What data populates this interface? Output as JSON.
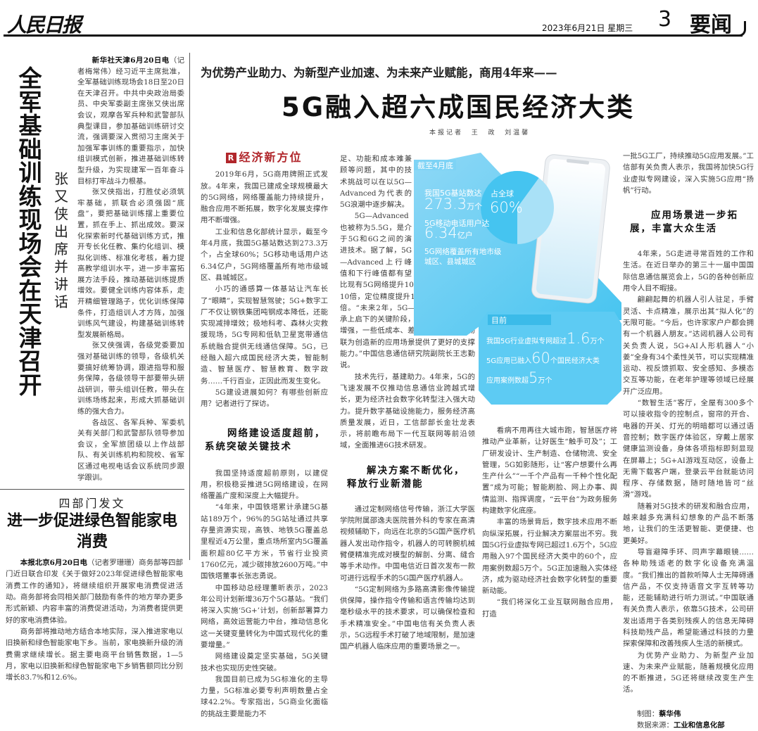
{
  "masthead": {
    "logo": "人民日报",
    "date": "2023年6月21日  星期三",
    "page_number": "3",
    "page_name": "要闻"
  },
  "left_story": {
    "headline": "全军基础训练现场会在天津召开",
    "subtitle": "张又侠出席并讲话",
    "dateline": "新华社天津6月20日电",
    "paragraphs": [
      "（记者梅常伟）经习近平主席批准，全军基础训练现场会18日至20日在天津召开。中共中央政治局委员、中央军委副主席张又侠出席会议，观摩各军兵种和武警部队典型课目，参加基础训练研讨交流，强调要深入贯彻习主席关于加强军事训练的重要指示，加快组训模式创新，推进基础训练转型升级，为实现建军一百年奋斗目标打牢战斗力根基。",
      "张又侠指出，打胜仗必须筑牢基础，抓联合必须强固“底盘”，要把基础训练摆上重要位置，抓在手上、抓出成效。要深化探索新时代基础训练方式，推开专长化任教、集约化组训、模拟化训练、标准化考核，着力提高教学组训水平，进一步丰富拓展方法手段，推动基础训练提质增效。要健全训练内容体系，走开精细管理路子，优化训练保障条件，打造组训人才方阵，加强训练风气建设，构建基础训练转型发展新格局。",
      "张又侠强调，各级党委要加强对基础训练的领导，各级机关要搞好统筹协调，跟进指导和服务保障，各级领导干部要带头研战研训，带头组训任教，带头在训练场练起来，形成大抓基础训练的强大合力。",
      "各战区、各军兵种、军委机关有关部门和武警部队领导参加会议，全军旅团级以上作战部队、有关训练机构和院校、省军区通过电视电话会议系统同步跟学跟训。"
    ]
  },
  "bottom_story": {
    "kicker": "四部门发文",
    "headline": "进一步促进绿色智能家电消费",
    "dateline": "本报北京6月20日电",
    "paragraphs": [
      "（记者罗珊珊）商务部等四部门近日联合印发《关于做好2023年促进绿色智能家电消费工作的通知》，将继续组织开展家电消费促进活动。商务部将会同相关部门鼓励有条件的地方举办更多形式新颖、内容丰富的消费促进活动，为消费者提供更好的家电消费体验。",
      "商务部将推动地方结合本地实际，深入推进家电以旧换新和绿色智能家电下乡。当前，家电换新升级的消费需求继续增长。据主要电商平台销售数据，1—5月，家电以旧换新和绿色智能家电下乡销售额同比分别增长83.7%和12.6%。"
    ]
  },
  "main_story": {
    "kicker": "为优势产业助力、为新型产业加速、为未来产业赋能，商用4年来——",
    "headline": "5G融入超六成国民经济大类",
    "byline": "本报记者  王  政  刘温馨",
    "section_label": "经济新方位",
    "section_icon": "R",
    "col1": [
      "2019年6月，5G商用牌照正式发放。4年来，我国已建成全球规模最大的5G网络，网络覆盖能力持续提升，融合应用不断拓展，数字化发展支撑作用不断增强。",
      "工业和信息化部统计显示，截至今年4月底，我国5G基站数达到273.3万个，占全球60%；5G移动电话用户达6.34亿户，5G网络覆盖所有地市级城区、县城城区。",
      "小巧的通感算一体基站让汽车长了“眼睛”，实现智慧驾驶；5G+数字工厂不仅让钢铁集团吨钢成本降低，还能实现减排增效；极地科考、森林火灾救援现场，5G专网和低轨卫星宽带通信系统融合提供无线通信保障。5G，已经融入超六成国民经济大类，智能制造、智慧医疗、智慧教育、数字政务……千行百业，正因此而发生变化。",
      "5G建设进展如何？有哪些创新应用？记者进行了探访。"
    ],
    "subhead1": [
      "网络建设适度超前，",
      "系统突破关键技术"
    ],
    "col1b": [
      "我国坚持适度超前原则，以建促用，积极稳妥推进5G网络建设，在网络覆盖广度和深度上大幅提升。",
      "“4年来，中国铁塔累计承建5G基站189万个，96%的5G站址通过共享存量资源实现，高铁、地铁5G覆盖总里程近4万公里，重点场所室内5G覆盖面积超80亿平方米，节省行业投资1760亿元，减少碳排放2600万吨。”中国铁塔董事长张志勇说。",
      "中国移动总经理董昕表示，2023年公司计划新增36万个5G基站。“我们将深入实施‘5G+’计划，创新部署算力网络，高效运营能力中台，推动信息化这一关键变量转化为中国式现代化的重要增量。”",
      "网络建设奠定坚实基础，5G关键技术也实现历史性突破。",
      "我国目前已成为5G标准化的主导力量，5G标准必要专利声明数量占全球42.2%。专家指出，5G商业化面临的挑战主要是能力不"
    ],
    "col2": [
      "足、功能和成本难兼顾等问题，其中的技术挑战可以在以5G—Advanced为代表的5G浪潮中逐步解决。",
      "5G—Advanced也被称为5.5G，是介于5G和6G之间的演进技术。据了解，5G—Advanced上行峰值和下行峰值都有望比现有5G网络提升10倍，连接密度改善10倍，定位精度提升10倍，能效提升10倍。“未来2年，5G—Advanced将进入承上启下的关键阶段，应用场景将进一步增强，一些低成本、差异化、广覆盖的物联为创造新的应用场景提供了更好的支撑能力。”中国信息通信研究院副院长王志勤说。",
      "技术先行，基建助力。4年来，5G的飞速发展不仅推动信息通信业跨越式增长，更为经济社会数字化转型注入强大动力。提升数字基础设施能力，服务经济高质量发展，近日，工信部部长金壮龙表示，将前瞻布局下一代互联网等前沿领域，全面推进6G技术研发。"
    ],
    "subhead2": [
      "解决方案不断优化，",
      "释放行业新潜能"
    ],
    "col2b": [
      "通过定制网络信号传输，浙江大学医学院附属邵逸夫医院普外科的专家在高清视频辅助下，向远在北京的5G国产医疗机器人发出动作指令，机器人的可转腕机械臂便精准完成对模型的解剖、分离、缝合等手术动作。中国电信近日首次发布一款可进行远程手术的5G国产医疗机器人。",
      "“5G定制网络为多路高清影像传输提供保障，操作指令传输和语言传输均达到毫秒级水平的技术要求，可以确保检查和手术精准安全。”中国电信有关负责人表示，5G远程手术打破了地域限制，是加速国产机器人临床应用的重要场景之一。"
    ],
    "col3": [
      "看病不用再往大城市跑，智慧医疗将推动产业革新，让好医生“触手可及”；工厂研发设计、生产制造、仓储物流、安全管理，5G如影随形，让“客户想要什么再生产什么”“一千个产品有一千种个性化配置”成为可能；智能刷脸、网上办事、舆情监测、指挥调度，“云平台”为政务服务构建数字化底座。",
      "丰富的场景背后，数字技术应用不断向纵深拓展，行业解决方案层出不穷。我国5G行业虚拟专网已超过1.6万个，5G应用融入97个国民经济大类中的60个，应用案例数超5万个。5G正加速融入实体经济，成为驱动经济社会数字化转型的重要新动能。",
      "“我们将深化工业互联网融合应用，打造"
    ],
    "col4a": "一批5G工厂，持续推动5G应用发展。”工信部有关负责人表示，我国将加快5G行业虚拟专网建设，深入实施5G应用“扬帆”行动。",
    "subhead3": [
      "应用场景进一步拓",
      "展，丰富大众生活"
    ],
    "col4": [
      "4年来，5G走进寻常百姓的工作和生活。在近日举办的第三十一届中国国际信息通信展览会上，5G的各种创新应用令人目不暇接。",
      "翩翩起舞的机器人引人驻足，手臂灵活、卡点精准，展示出其“拟人化”的无限可能。“今后，也许家家户户都会拥有一个机器人朋友。”达闼机器人公司有关负责人说，5G+AI人形机器人“小姜”全身有34个柔性关节，可以实现精准运动、视反馈抓取、安全感知、多模态交互等功能，在老年护理等领域已经展开广泛应用。",
      "“数智生活”客厅，全屋有300多个可以接收指令的控制点，窗帘的开合、电器的开关、灯光的明暗都可以通过语音控制；数字医疗体验区，穿戴上居家健康监测设备，身体各项指标即刻显现在屏幕上；5G+AI游戏互动区，设备上无需下载客户端，登录云平台就能访问程序、存储数据，随时随地皆可“丝滑”游戏。",
      "随着对5G技术的研发和融合应用，越来越多充满科幻想象的产品不断落地，让我们的生活更智能、更便捷、也更美好。",
      "导盲避障手环、同声字幕眼镜……各种助残适老的数字化设备充满温度。“我们推出的首款听障人士无障碍通信产品，不仅支持语音文字互转等功能，还能辅助进行听力测试。”中国联通有关负责人表示，依靠5G技术，公司研发出适用于各类别残疾人的信息无障碍科技助残产品，希望能通过科技的力量探索保障和改善残疾人生活的新模式。",
      "为优势产业助力、为新型产业加速、为未来产业赋能，随着规模化应用的不断推进，5G还将继续改变生产生活。"
    ],
    "credits": {
      "chart_label": "制图：",
      "chart_author": "蔡华伟",
      "source_label": "数据来源：",
      "source": "工业和信息化部"
    }
  },
  "infographic": {
    "tab1": "截至4月底",
    "stat1_label": "我国5G基站数达",
    "stat1_value": "273.3",
    "stat1_unit": "万个",
    "stat2_label": "5G移动电话用户达",
    "stat2_value": "6.34",
    "stat2_unit": "亿户",
    "stat3": [
      "5G网络覆盖所有地市级",
      "城区、县城城区"
    ],
    "pie_label": "占全球",
    "pie_value": "60%",
    "pie_fraction": 0.6,
    "tab2": "目前",
    "line1_pre": "我国5G行业虚拟专网超过",
    "line1_value": "1.6",
    "line1_unit": "万个",
    "line2_pre": "5G应用已融入",
    "line2_value": "60",
    "line2_unit": "个国民经济大类",
    "line3_pre": "应用案例数超",
    "line3_value": "5",
    "line3_unit": "万个",
    "colors": {
      "primary": "#45c4f0",
      "light": "#a9e1f7",
      "phone": "#f4f6f8"
    }
  }
}
